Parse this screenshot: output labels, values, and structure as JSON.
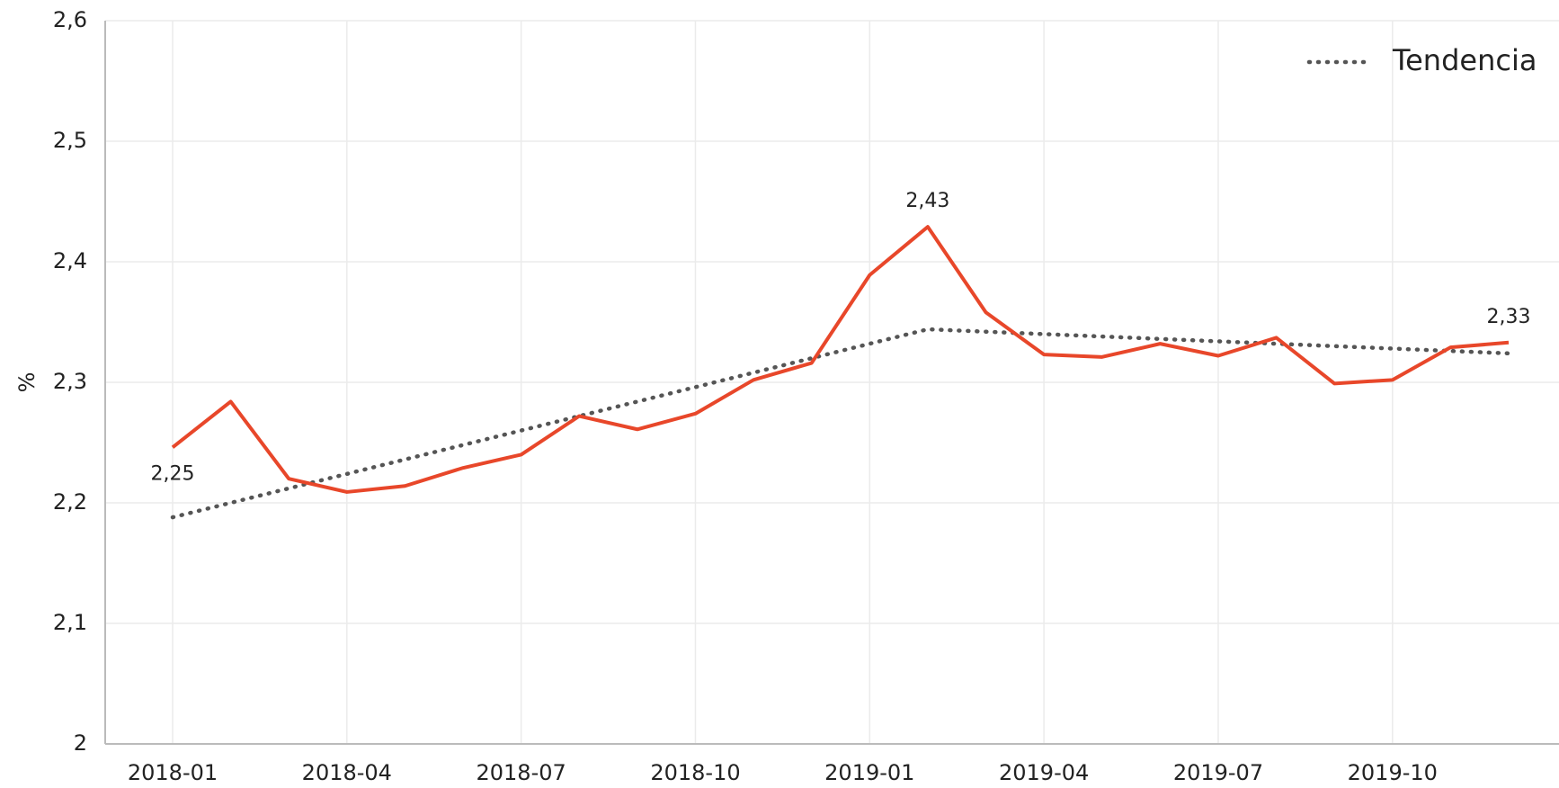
{
  "chart_data": {
    "type": "line",
    "x": [
      "2018-01",
      "2018-02",
      "2018-03",
      "2018-04",
      "2018-05",
      "2018-06",
      "2018-07",
      "2018-08",
      "2018-09",
      "2018-10",
      "2018-11",
      "2018-12",
      "2019-01",
      "2019-02",
      "2019-03",
      "2019-04",
      "2019-05",
      "2019-06",
      "2019-07",
      "2019-08",
      "2019-09",
      "2019-10",
      "2019-11",
      "2019-12"
    ],
    "xticks": [
      "2018-01",
      "2018-04",
      "2018-07",
      "2018-10",
      "2019-01",
      "2019-04",
      "2019-07",
      "2019-10"
    ],
    "ylabel": "%",
    "ylim": [
      2,
      2.6
    ],
    "yticks": [
      2,
      {
        "value": 2.1,
        "label": "2,1"
      },
      {
        "value": 2.2,
        "label": "2,2"
      },
      {
        "value": 2.3,
        "label": "2,3"
      },
      {
        "value": 2.4,
        "label": "2,4"
      },
      {
        "value": 2.5,
        "label": "2,5"
      },
      {
        "value": 2.6,
        "label": "2,6"
      }
    ],
    "grid": true,
    "legend": "upper right",
    "series": [
      {
        "color": "#e8472a",
        "style": "solid",
        "values": [
          2.246,
          2.284,
          2.22,
          2.209,
          2.214,
          2.229,
          2.24,
          2.272,
          2.261,
          2.274,
          2.302,
          2.316,
          2.389,
          2.429,
          2.358,
          2.323,
          2.321,
          2.332,
          2.322,
          2.337,
          2.299,
          2.302,
          2.329,
          2.333
        ],
        "value_labels": [
          "2,25",
          null,
          null,
          null,
          null,
          null,
          null,
          null,
          null,
          null,
          null,
          null,
          null,
          "2,43",
          null,
          null,
          null,
          null,
          null,
          null,
          null,
          null,
          null,
          "2,33"
        ]
      },
      {
        "name": "Tendencia",
        "color": "#555555",
        "style": "dotted",
        "values": [
          2.188,
          2.2,
          2.212,
          2.224,
          2.236,
          2.248,
          2.26,
          2.272,
          2.284,
          2.296,
          2.308,
          2.32,
          2.332,
          2.344,
          2.342,
          2.34,
          2.338,
          2.336,
          2.334,
          2.332,
          2.33,
          2.328,
          2.326,
          2.324
        ]
      }
    ]
  }
}
